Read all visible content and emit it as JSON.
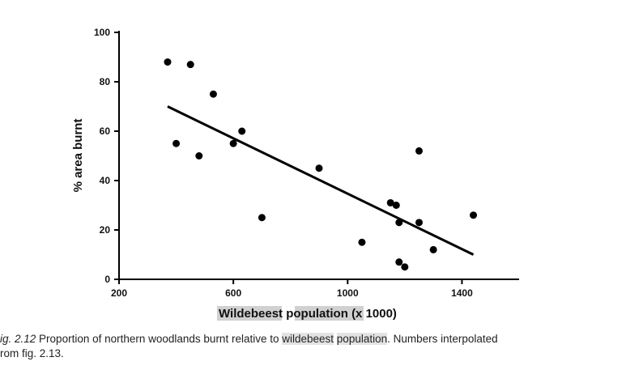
{
  "chart_data": {
    "type": "scatter",
    "xlabel_parts": [
      "Wildebeest",
      "population",
      "(x 1000)"
    ],
    "ylabel": "% area burnt",
    "xlim": [
      200,
      1600
    ],
    "ylim": [
      0,
      100
    ],
    "x_ticks": [
      200,
      600,
      1000,
      1400
    ],
    "y_ticks": [
      0,
      20,
      40,
      60,
      80,
      100
    ],
    "points": [
      {
        "x": 370,
        "y": 88
      },
      {
        "x": 450,
        "y": 87
      },
      {
        "x": 530,
        "y": 75
      },
      {
        "x": 400,
        "y": 55
      },
      {
        "x": 480,
        "y": 50
      },
      {
        "x": 600,
        "y": 55
      },
      {
        "x": 630,
        "y": 60
      },
      {
        "x": 700,
        "y": 25
      },
      {
        "x": 900,
        "y": 45
      },
      {
        "x": 1050,
        "y": 15
      },
      {
        "x": 1150,
        "y": 31
      },
      {
        "x": 1170,
        "y": 30
      },
      {
        "x": 1180,
        "y": 23
      },
      {
        "x": 1180,
        "y": 7
      },
      {
        "x": 1200,
        "y": 5
      },
      {
        "x": 1250,
        "y": 52
      },
      {
        "x": 1250,
        "y": 23
      },
      {
        "x": 1300,
        "y": 12
      },
      {
        "x": 1440,
        "y": 26
      }
    ],
    "trendline": {
      "x": [
        370,
        1440
      ],
      "y": [
        70,
        10
      ]
    }
  },
  "caption": {
    "fig_label": "ig. 2.12",
    "text_before": " Proportion of northern woodlands burnt relative to ",
    "highlight_1": "wildebeest",
    "space": " ",
    "highlight_2": "population",
    "text_after": ". Numbers interpolated",
    "line2": "rom fig. 2.13."
  }
}
